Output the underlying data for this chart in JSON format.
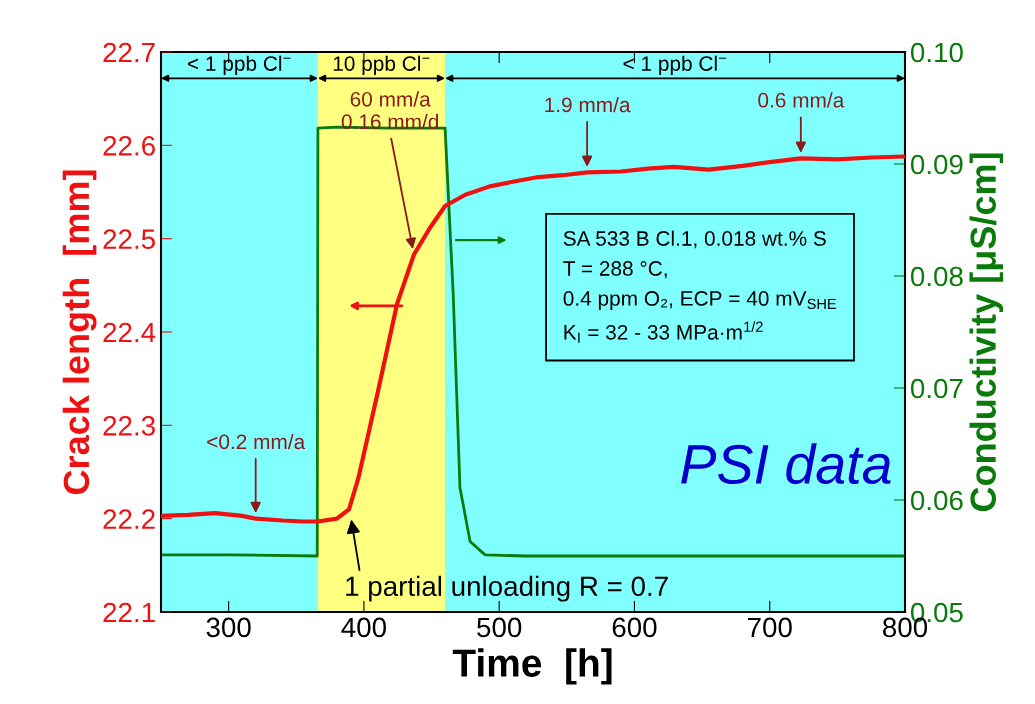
{
  "chart_data": {
    "type": "line",
    "xlabel": "Time  [h]",
    "ylabel": "Crack length  [mm]",
    "y2label": "Conductivity [μS/cm]",
    "xlim": [
      250,
      800
    ],
    "xticks": [
      300,
      400,
      500,
      600,
      700,
      800
    ],
    "ylim": [
      22.1,
      22.7
    ],
    "yticks": [
      22.1,
      22.2,
      22.3,
      22.4,
      22.5,
      22.6,
      22.7
    ],
    "y2lim": [
      0.05,
      0.1
    ],
    "y2ticks": [
      0.05,
      0.06,
      0.07,
      0.08,
      0.09,
      {
        "value": 0.1,
        "label": "0.10"
      }
    ],
    "grid": false,
    "series": [
      {
        "color": "#ee1111",
        "x": [
          250,
          270,
          290,
          310,
          320,
          340,
          355,
          366,
          380,
          389,
          396,
          410.5,
          424.5,
          437,
          449,
          460,
          475,
          493,
          510,
          529,
          547,
          565,
          590,
          610,
          629,
          655,
          680,
          700,
          723,
          750,
          775,
          800
        ],
        "values": [
          22.203,
          22.204,
          22.206,
          22.203,
          22.2,
          22.198,
          22.197,
          22.197,
          22.2,
          22.21,
          22.244,
          22.337,
          22.43,
          22.483,
          22.512,
          22.535,
          22.547,
          22.556,
          22.561,
          22.566,
          22.568,
          22.571,
          22.572,
          22.575,
          22.577,
          22.574,
          22.578,
          22.582,
          22.586,
          22.585,
          22.587,
          22.588
        ]
      },
      {
        "color": "#0a7a0a",
        "axis": "y2",
        "x": [
          250,
          300,
          365.5,
          366,
          380,
          420,
          459.5,
          460,
          466,
          471,
          478.5,
          489.6,
          520,
          600,
          700,
          800
        ],
        "values": [
          0.0551,
          0.0551,
          0.055,
          0.0932,
          0.0933,
          0.0932,
          0.0932,
          0.0932,
          0.0784,
          0.0611,
          0.0563,
          0.0551,
          0.055,
          0.055,
          0.055,
          0.055
        ]
      }
    ],
    "bands": [
      {
        "axis": "x",
        "from": 250,
        "to": 366,
        "label": "< 1 ppb Cl$^{−}$",
        "color": "#80ffff"
      },
      {
        "axis": "x",
        "from": 366,
        "to": 460,
        "label": "10 ppb Cl$^{−}$",
        "color": "#ffff80"
      },
      {
        "axis": "x",
        "from": 460,
        "to": 800,
        "label": "< 1 ppb Cl$^{−}$",
        "color": "#80ffff"
      }
    ],
    "annotations": [
      {
        "text": "<0.2 mm/a",
        "x": 320,
        "y": 22.2
      },
      {
        "text": "60 mm/a\n0.16 mm/d",
        "x": 437,
        "y": 22.483
      },
      {
        "text": "1.9 mm/a",
        "x": 565,
        "y": 22.571
      },
      {
        "text": "0.6 mm/a",
        "x": 723,
        "y": 22.586
      },
      {
        "text": "1 partial unloading R = 0.7",
        "x": 390,
        "y": 22.205
      },
      "SA 533 B Cl.1, 0.018 wt.% S\nT = 288 °C,\n0.4 ppm O₂, ECP = 40 mV$_{SHE}$\nK$_{I}$ = 32 - 33 MPa·m$^{1/2}$",
      "PSI data"
    ]
  }
}
